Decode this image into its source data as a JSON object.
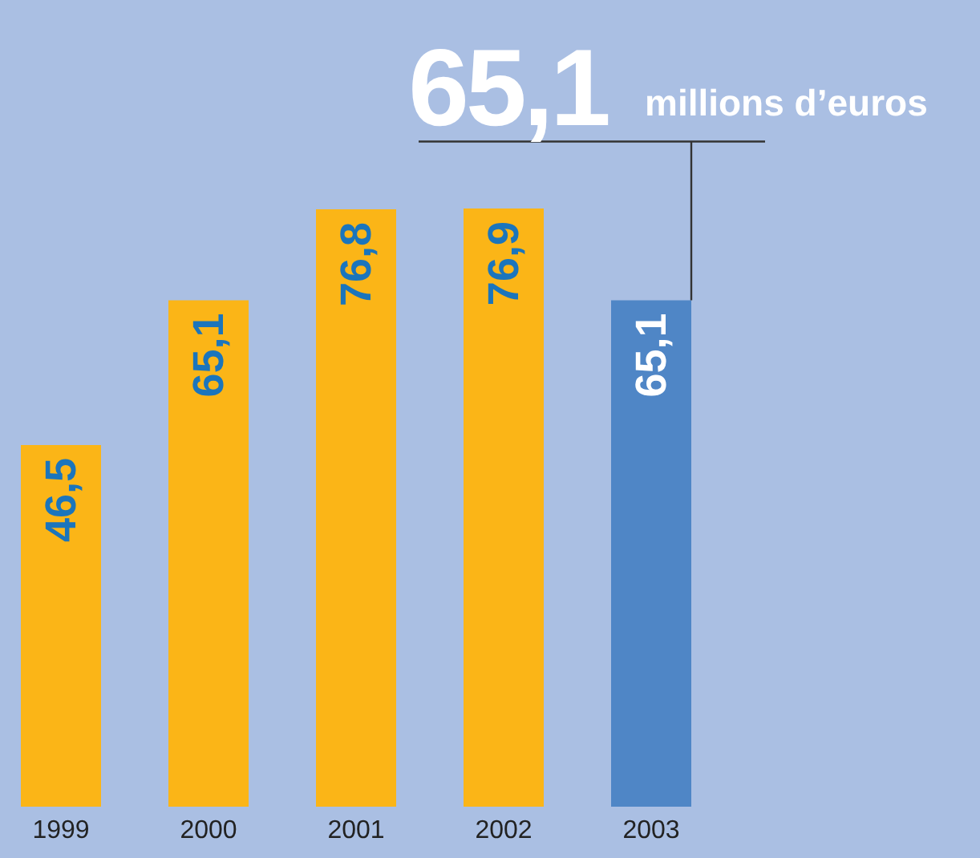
{
  "chart_data": {
    "type": "bar",
    "categories": [
      "1999",
      "2000",
      "2001",
      "2002",
      "2003"
    ],
    "values": [
      46.5,
      65.1,
      76.8,
      76.9,
      65.1
    ],
    "colors": [
      "#fbb517",
      "#fbb517",
      "#fbb517",
      "#fbb517",
      "#4f86c6"
    ],
    "value_labels": [
      "46,5",
      "65,1",
      "76,8",
      "76,9",
      "65,1"
    ],
    "annotations": [
      {
        "text": "65,1",
        "x": "2003",
        "y": 65.1
      },
      "millions d’euros"
    ],
    "grid": false,
    "legend": false
  }
}
